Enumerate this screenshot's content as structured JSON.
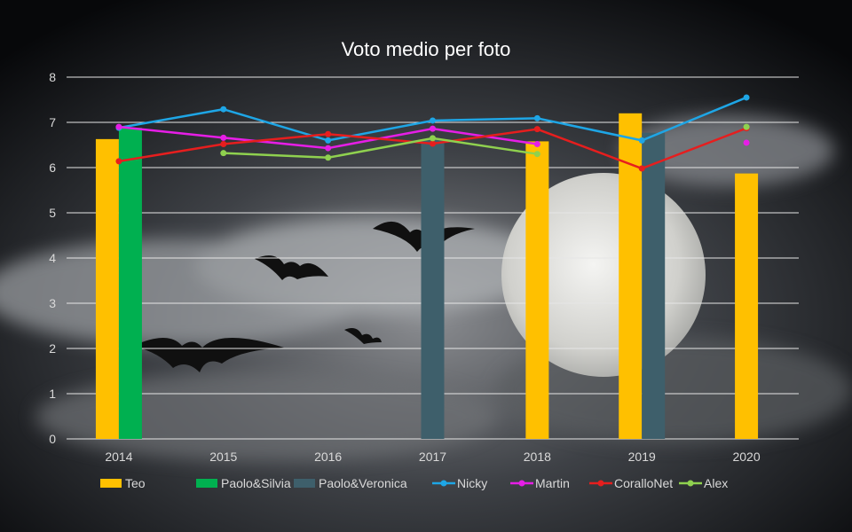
{
  "chart_data": {
    "type": "bar",
    "title": "Voto medio per foto",
    "xlabel": "",
    "ylabel": "",
    "ylim": [
      0,
      8
    ],
    "yticks": [
      "0",
      "1",
      "2",
      "3",
      "4",
      "5",
      "6",
      "7",
      "8"
    ],
    "grid": true,
    "legend_position": "bottom",
    "categories": [
      "2014",
      "2015",
      "2016",
      "2017",
      "2018",
      "2019",
      "2020"
    ],
    "bar_series": [
      {
        "name": "Teo",
        "color": "#ffc000",
        "values": [
          6.63,
          null,
          null,
          null,
          6.58,
          7.2,
          5.87
        ]
      },
      {
        "name": "Paolo&Silvia",
        "color": "#00b050",
        "values": [
          6.88,
          null,
          null,
          null,
          null,
          null,
          null
        ]
      },
      {
        "name": "Paolo&Veronica",
        "color": "#3e5f6b",
        "values": [
          null,
          null,
          null,
          6.62,
          null,
          6.77,
          null
        ]
      }
    ],
    "line_series": [
      {
        "name": "Nicky",
        "color": "#1ea6e6",
        "values": [
          6.88,
          7.29,
          6.6,
          7.04,
          7.09,
          6.6,
          7.55
        ]
      },
      {
        "name": "Martin",
        "color": "#e61ee6",
        "values": [
          6.9,
          6.66,
          6.43,
          6.86,
          6.52,
          null,
          6.55
        ]
      },
      {
        "name": "CoralloNet",
        "color": "#e61e1e",
        "values": [
          6.14,
          6.52,
          6.74,
          6.53,
          6.85,
          5.98,
          6.87
        ]
      },
      {
        "name": "Alex",
        "color": "#8fd14f",
        "values": [
          null,
          6.32,
          6.22,
          6.65,
          6.3,
          null,
          6.9
        ]
      }
    ]
  }
}
